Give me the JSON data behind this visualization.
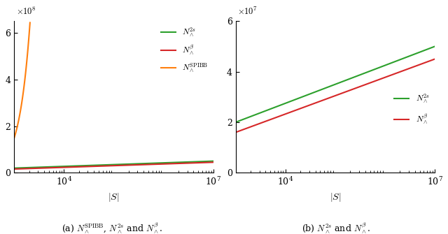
{
  "S_min": 1000,
  "S_max": 10000000.0,
  "n_points": 1000,
  "left_ylim": [
    0,
    650000000.0
  ],
  "left_yticks": [
    0,
    200000000.0,
    400000000.0,
    600000000.0
  ],
  "right_ylim": [
    0,
    60000000.0
  ],
  "right_yticks": [
    0,
    20000000.0,
    40000000.0,
    60000000.0
  ],
  "color_green": "#2ca02c",
  "color_red": "#d62728",
  "color_orange": "#ff7f0e",
  "xlabel": "$|S|$",
  "caption_a": "(a) $N_\\wedge^{\\mathrm{SPIBB}}$, $N_\\wedge^{2s}$ and $N_\\wedge^{\\beta}$.",
  "caption_b": "(b) $N_\\wedge^{2s}$ and $N_\\wedge^{\\beta}$.",
  "legend_2s": "$N_\\wedge^{2s}$",
  "legend_beta": "$N_\\wedge^{\\beta}$",
  "legend_SPIBB": "$N_\\wedge^{\\mathrm{SPIBB}}$",
  "spibb_coeff": 150.0,
  "a_2s": 7500000.0,
  "b_2s": -2500000.0,
  "a_beta": 7250000.0,
  "b_beta": -5750000.0,
  "xticks_left": [
    10000.0,
    10000000.0
  ],
  "xticks_right": [
    10000.0,
    10000000.0
  ]
}
